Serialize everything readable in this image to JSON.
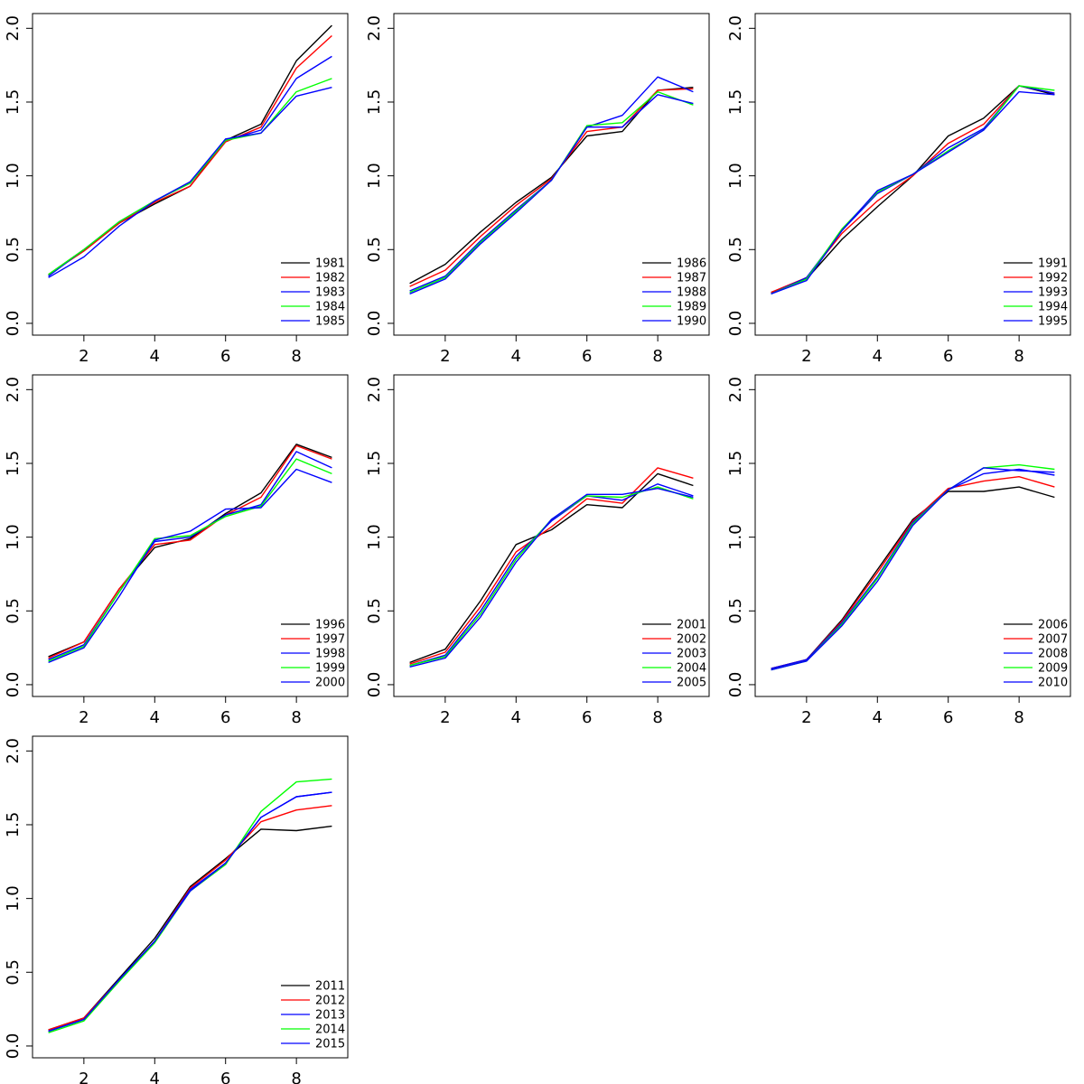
{
  "colors": {
    "black": "#000000",
    "red": "#ff0000",
    "green": "#00ff00",
    "blue": "#0000ff"
  },
  "chart_data": [
    {
      "type": "line",
      "title": "",
      "xlabel": "",
      "ylabel": "",
      "xlim": [
        0.55,
        9.45
      ],
      "ylim": [
        -0.08,
        2.1
      ],
      "x_ticks": [
        "2",
        "4",
        "6",
        "8"
      ],
      "y_ticks": [
        "0.0",
        "0.5",
        "1.0",
        "1.5",
        "2.0"
      ],
      "legend_position": "bottom-right",
      "x": [
        1,
        2,
        3,
        4,
        5,
        6,
        7,
        8,
        9
      ],
      "series": [
        {
          "name": "1981",
          "color": "#000000",
          "values": [
            0.33,
            0.5,
            0.68,
            0.81,
            0.93,
            1.24,
            1.35,
            1.78,
            2.02
          ]
        },
        {
          "name": "1982",
          "color": "#ff0000",
          "values": [
            0.33,
            0.49,
            0.68,
            0.82,
            0.93,
            1.23,
            1.33,
            1.73,
            1.95
          ]
        },
        {
          "name": "1983",
          "color": "#0000ff",
          "values": [
            0.32,
            0.5,
            0.69,
            0.83,
            0.95,
            1.24,
            1.31,
            1.66,
            1.81
          ]
        },
        {
          "name": "1984",
          "color": "#00ff00",
          "values": [
            0.33,
            0.5,
            0.69,
            0.83,
            0.95,
            1.24,
            1.29,
            1.57,
            1.66
          ]
        },
        {
          "name": "1985",
          "color": "#0000ff",
          "values": [
            0.31,
            0.45,
            0.66,
            0.83,
            0.96,
            1.25,
            1.29,
            1.54,
            1.6
          ]
        }
      ]
    },
    {
      "type": "line",
      "title": "",
      "xlabel": "",
      "ylabel": "",
      "xlim": [
        0.55,
        9.45
      ],
      "ylim": [
        -0.08,
        2.1
      ],
      "x_ticks": [
        "2",
        "4",
        "6",
        "8"
      ],
      "y_ticks": [
        "0.0",
        "0.5",
        "1.0",
        "1.5",
        "2.0"
      ],
      "legend_position": "bottom-right",
      "x": [
        1,
        2,
        3,
        4,
        5,
        6,
        7,
        8,
        9
      ],
      "series": [
        {
          "name": "1986",
          "color": "#000000",
          "values": [
            0.27,
            0.4,
            0.62,
            0.82,
            0.99,
            1.27,
            1.3,
            1.58,
            1.6
          ]
        },
        {
          "name": "1987",
          "color": "#ff0000",
          "values": [
            0.25,
            0.36,
            0.59,
            0.8,
            0.98,
            1.3,
            1.33,
            1.58,
            1.59
          ]
        },
        {
          "name": "1988",
          "color": "#0000ff",
          "values": [
            0.22,
            0.32,
            0.56,
            0.77,
            0.97,
            1.33,
            1.41,
            1.67,
            1.57
          ]
        },
        {
          "name": "1989",
          "color": "#00ff00",
          "values": [
            0.21,
            0.31,
            0.55,
            0.76,
            0.97,
            1.34,
            1.36,
            1.57,
            1.48
          ]
        },
        {
          "name": "1990",
          "color": "#0000ff",
          "values": [
            0.2,
            0.3,
            0.54,
            0.75,
            0.97,
            1.33,
            1.33,
            1.55,
            1.49
          ]
        }
      ]
    },
    {
      "type": "line",
      "title": "",
      "xlabel": "",
      "ylabel": "",
      "xlim": [
        0.55,
        9.45
      ],
      "ylim": [
        -0.08,
        2.1
      ],
      "x_ticks": [
        "2",
        "4",
        "6",
        "8"
      ],
      "y_ticks": [
        "0.0",
        "0.5",
        "1.0",
        "1.5",
        "2.0"
      ],
      "legend_position": "bottom-right",
      "x": [
        1,
        2,
        3,
        4,
        5,
        6,
        7,
        8,
        9
      ],
      "series": [
        {
          "name": "1991",
          "color": "#000000",
          "values": [
            0.21,
            0.3,
            0.57,
            0.79,
            1.0,
            1.27,
            1.39,
            1.61,
            1.55
          ]
        },
        {
          "name": "1992",
          "color": "#ff0000",
          "values": [
            0.21,
            0.31,
            0.61,
            0.83,
            1.0,
            1.22,
            1.35,
            1.61,
            1.56
          ]
        },
        {
          "name": "1993",
          "color": "#0000ff",
          "values": [
            0.2,
            0.31,
            0.63,
            0.88,
            1.01,
            1.19,
            1.32,
            1.61,
            1.56
          ]
        },
        {
          "name": "1994",
          "color": "#00ff00",
          "values": [
            0.2,
            0.3,
            0.64,
            0.89,
            1.01,
            1.17,
            1.31,
            1.61,
            1.58
          ]
        },
        {
          "name": "1995",
          "color": "#0000ff",
          "values": [
            0.2,
            0.29,
            0.63,
            0.9,
            1.01,
            1.16,
            1.31,
            1.57,
            1.55
          ]
        }
      ]
    },
    {
      "type": "line",
      "title": "",
      "xlabel": "",
      "ylabel": "",
      "xlim": [
        0.55,
        9.45
      ],
      "ylim": [
        -0.08,
        2.1
      ],
      "x_ticks": [
        "2",
        "4",
        "6",
        "8"
      ],
      "y_ticks": [
        "0.0",
        "0.5",
        "1.0",
        "1.5",
        "2.0"
      ],
      "legend_position": "bottom-right",
      "x": [
        1,
        2,
        3,
        4,
        5,
        6,
        7,
        8,
        9
      ],
      "series": [
        {
          "name": "1996",
          "color": "#000000",
          "values": [
            0.19,
            0.29,
            0.65,
            0.93,
            0.99,
            1.16,
            1.3,
            1.63,
            1.54
          ]
        },
        {
          "name": "1997",
          "color": "#ff0000",
          "values": [
            0.18,
            0.29,
            0.65,
            0.95,
            0.98,
            1.15,
            1.27,
            1.62,
            1.53
          ]
        },
        {
          "name": "1998",
          "color": "#0000ff",
          "values": [
            0.17,
            0.27,
            0.63,
            0.97,
            1.0,
            1.15,
            1.22,
            1.58,
            1.47
          ]
        },
        {
          "name": "1999",
          "color": "#00ff00",
          "values": [
            0.16,
            0.26,
            0.63,
            0.99,
            1.01,
            1.14,
            1.21,
            1.53,
            1.43
          ]
        },
        {
          "name": "2000",
          "color": "#0000ff",
          "values": [
            0.15,
            0.25,
            0.6,
            0.98,
            1.04,
            1.19,
            1.2,
            1.46,
            1.37
          ]
        }
      ]
    },
    {
      "type": "line",
      "title": "",
      "xlabel": "",
      "ylabel": "",
      "xlim": [
        0.55,
        9.45
      ],
      "ylim": [
        -0.08,
        2.1
      ],
      "x_ticks": [
        "2",
        "4",
        "6",
        "8"
      ],
      "y_ticks": [
        "0.0",
        "0.5",
        "1.0",
        "1.5",
        "2.0"
      ],
      "legend_position": "bottom-right",
      "x": [
        1,
        2,
        3,
        4,
        5,
        6,
        7,
        8,
        9
      ],
      "series": [
        {
          "name": "2001",
          "color": "#000000",
          "values": [
            0.15,
            0.24,
            0.57,
            0.95,
            1.05,
            1.22,
            1.2,
            1.43,
            1.35
          ]
        },
        {
          "name": "2002",
          "color": "#ff0000",
          "values": [
            0.14,
            0.22,
            0.53,
            0.9,
            1.07,
            1.26,
            1.23,
            1.47,
            1.4
          ]
        },
        {
          "name": "2003",
          "color": "#0000ff",
          "values": [
            0.13,
            0.2,
            0.5,
            0.87,
            1.11,
            1.28,
            1.25,
            1.36,
            1.28
          ]
        },
        {
          "name": "2004",
          "color": "#00ff00",
          "values": [
            0.13,
            0.19,
            0.48,
            0.85,
            1.12,
            1.28,
            1.27,
            1.34,
            1.26
          ]
        },
        {
          "name": "2005",
          "color": "#0000ff",
          "values": [
            0.12,
            0.18,
            0.46,
            0.83,
            1.12,
            1.29,
            1.29,
            1.33,
            1.27
          ]
        }
      ]
    },
    {
      "type": "line",
      "title": "",
      "xlabel": "",
      "ylabel": "",
      "xlim": [
        0.55,
        9.45
      ],
      "ylim": [
        -0.08,
        2.1
      ],
      "x_ticks": [
        "2",
        "4",
        "6",
        "8"
      ],
      "y_ticks": [
        "0.0",
        "0.5",
        "1.0",
        "1.5",
        "2.0"
      ],
      "legend_position": "bottom-right",
      "x": [
        1,
        2,
        3,
        4,
        5,
        6,
        7,
        8,
        9
      ],
      "series": [
        {
          "name": "2006",
          "color": "#000000",
          "values": [
            0.11,
            0.17,
            0.44,
            0.78,
            1.12,
            1.31,
            1.31,
            1.34,
            1.27
          ]
        },
        {
          "name": "2007",
          "color": "#ff0000",
          "values": [
            0.11,
            0.17,
            0.43,
            0.76,
            1.11,
            1.33,
            1.38,
            1.41,
            1.34
          ]
        },
        {
          "name": "2008",
          "color": "#0000ff",
          "values": [
            0.11,
            0.17,
            0.42,
            0.73,
            1.1,
            1.32,
            1.43,
            1.46,
            1.42
          ]
        },
        {
          "name": "2009",
          "color": "#00ff00",
          "values": [
            0.1,
            0.16,
            0.41,
            0.72,
            1.09,
            1.32,
            1.47,
            1.49,
            1.46
          ]
        },
        {
          "name": "2010",
          "color": "#0000ff",
          "values": [
            0.1,
            0.16,
            0.4,
            0.7,
            1.08,
            1.32,
            1.47,
            1.45,
            1.44
          ]
        }
      ]
    },
    {
      "type": "line",
      "title": "",
      "xlabel": "",
      "ylabel": "",
      "xlim": [
        0.55,
        9.45
      ],
      "ylim": [
        -0.08,
        2.1
      ],
      "x_ticks": [
        "2",
        "4",
        "6",
        "8"
      ],
      "y_ticks": [
        "0.0",
        "0.5",
        "1.0",
        "1.5",
        "2.0"
      ],
      "legend_position": "bottom-right",
      "x": [
        1,
        2,
        3,
        4,
        5,
        6,
        7,
        8,
        9
      ],
      "series": [
        {
          "name": "2011",
          "color": "#000000",
          "values": [
            0.11,
            0.19,
            0.46,
            0.73,
            1.08,
            1.27,
            1.47,
            1.46,
            1.49
          ]
        },
        {
          "name": "2012",
          "color": "#ff0000",
          "values": [
            0.11,
            0.19,
            0.45,
            0.71,
            1.07,
            1.26,
            1.52,
            1.6,
            1.63
          ]
        },
        {
          "name": "2013",
          "color": "#0000ff",
          "values": [
            0.1,
            0.18,
            0.45,
            0.71,
            1.06,
            1.24,
            1.55,
            1.69,
            1.72
          ]
        },
        {
          "name": "2014",
          "color": "#00ff00",
          "values": [
            0.09,
            0.17,
            0.44,
            0.7,
            1.05,
            1.23,
            1.59,
            1.79,
            1.81
          ]
        },
        {
          "name": "2015",
          "color": "#0000ff",
          "values": [
            0.1,
            0.18,
            0.45,
            0.71,
            1.05,
            1.24,
            1.55,
            1.69,
            1.72
          ]
        }
      ]
    }
  ]
}
